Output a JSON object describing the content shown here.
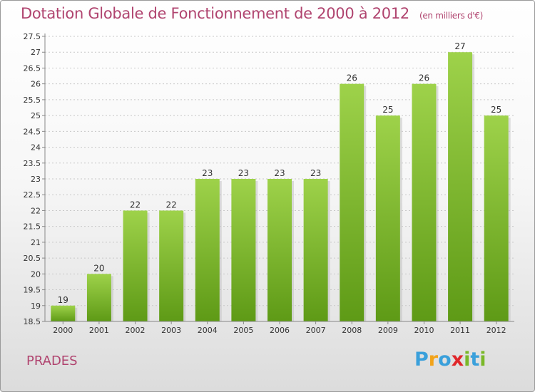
{
  "title": "Dotation Globale de Fonctionnement de 2000 à 2012",
  "subtitle": "(en milliers d'€)",
  "commune": "PRADES",
  "brand": {
    "letters": [
      "P",
      "r",
      "o",
      "x",
      "i",
      "t",
      "i"
    ],
    "colors": [
      "#3aa0db",
      "#f2a31a",
      "#3aa0db",
      "#e0262a",
      "#7ab828",
      "#3aa0db",
      "#7ab828"
    ]
  },
  "colors": {
    "title": "#b0446f",
    "bar_top": "#9ed24a",
    "bar_bottom": "#5e9a16",
    "grid": "#c8c8c8"
  },
  "chart_data": {
    "type": "bar",
    "title": "Dotation Globale de Fonctionnement de 2000 à 2012",
    "subtitle": "(en milliers d'€)",
    "categories": [
      "2000",
      "2001",
      "2002",
      "2003",
      "2004",
      "2005",
      "2006",
      "2007",
      "2008",
      "2009",
      "2010",
      "2011",
      "2012"
    ],
    "values": [
      19,
      20,
      22,
      22,
      23,
      23,
      23,
      23,
      26,
      25,
      26,
      27,
      25
    ],
    "data_labels": [
      "19",
      "20",
      "22",
      "22",
      "23",
      "23",
      "23",
      "23",
      "26",
      "25",
      "26",
      "27",
      "25"
    ],
    "ylim": [
      18.5,
      27.5
    ],
    "yticks": [
      "18.5",
      "19",
      "19.5",
      "20",
      "20.5",
      "21",
      "21.5",
      "22",
      "22.5",
      "23",
      "23.5",
      "24",
      "24.5",
      "25",
      "25.5",
      "26",
      "26.5",
      "27",
      "27.5"
    ],
    "grid": true,
    "legend": "none"
  }
}
